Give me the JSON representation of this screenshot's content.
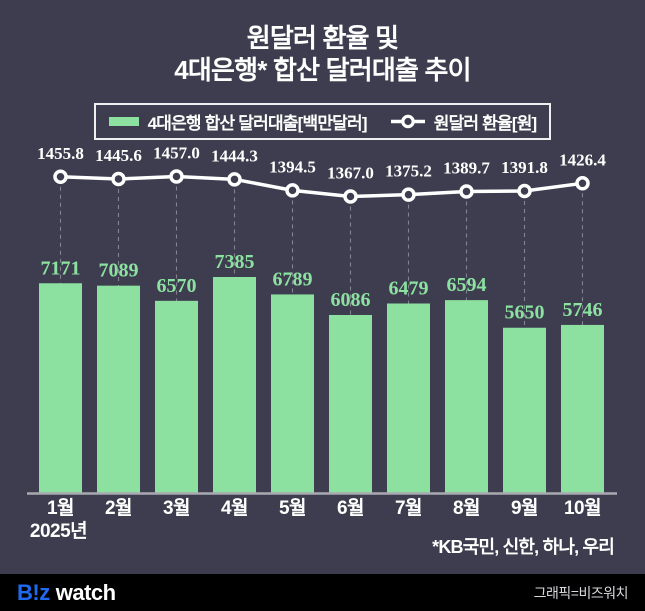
{
  "page": {
    "background": "#3D3D4F",
    "accent_green": "#8CE1A0"
  },
  "title": {
    "line1": "원달러 환율 및",
    "line2": "4대은행* 합산 달러대출 추이"
  },
  "legend": {
    "bar_label": "4대은행 합산 달러대출[백만달러]",
    "line_label": "원달러 환율[원]"
  },
  "chart_data": {
    "type": "bar+line combo",
    "categories": [
      "1월",
      "2월",
      "3월",
      "4월",
      "5월",
      "6월",
      "7월",
      "8월",
      "9월",
      "10월"
    ],
    "x_axis_note": "2025년",
    "series": [
      {
        "name": "4대은행 합산 달러대출[백만달러]",
        "type": "bar",
        "color": "#8CE1A0",
        "values": [
          7171,
          7089,
          6570,
          7385,
          6789,
          6086,
          6479,
          6594,
          5650,
          5746
        ]
      },
      {
        "name": "원달러 환율[원]",
        "type": "line",
        "color": "#FFFFFF",
        "values": [
          1455.8,
          1445.6,
          1457.0,
          1444.3,
          1394.5,
          1367.0,
          1375.2,
          1389.7,
          1391.8,
          1426.4
        ]
      }
    ],
    "legend_position": "top",
    "grid": false,
    "data_labels": true
  },
  "footnote": "*KB국민, 신한, 하나, 우리",
  "footer": {
    "logo_biz": "B!z",
    "logo_watch": "watch",
    "logo_blue": "#1E6BF2",
    "credit": "그래픽=비즈워치"
  }
}
